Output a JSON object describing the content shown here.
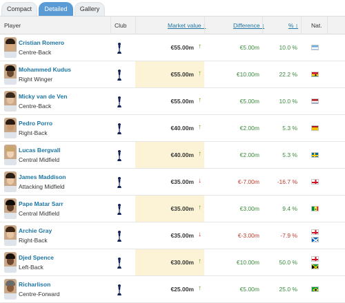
{
  "tabs": [
    "Compact",
    "Detailed",
    "Gallery"
  ],
  "columns": {
    "player": "Player",
    "club": "Club",
    "market_value": "Market value ↕",
    "difference": "Difference ↕",
    "percent": "% ↕",
    "nationality": "Nat."
  },
  "club_icon": "tottenham-crest-icon",
  "players": [
    {
      "name": "Cristian Romero",
      "position": "Centre-Back",
      "market_value": "€55.00m",
      "trend": "up",
      "highlight": false,
      "difference": "€5.00m",
      "percent": "10.0 %",
      "flags": [
        "argentina"
      ]
    },
    {
      "name": "Mohammed Kudus",
      "position": "Right Winger",
      "market_value": "€55.00m",
      "trend": "up",
      "highlight": true,
      "difference": "€10.00m",
      "percent": "22.2 %",
      "flags": [
        "ghana"
      ]
    },
    {
      "name": "Micky van de Ven",
      "position": "Centre-Back",
      "market_value": "€55.00m",
      "trend": "up",
      "highlight": false,
      "difference": "€5.00m",
      "percent": "10.0 %",
      "flags": [
        "netherlands"
      ]
    },
    {
      "name": "Pedro Porro",
      "position": "Right-Back",
      "market_value": "€40.00m",
      "trend": "up",
      "highlight": false,
      "difference": "€2.00m",
      "percent": "5.3 %",
      "flags": [
        "spain"
      ]
    },
    {
      "name": "Lucas Bergvall",
      "position": "Central Midfield",
      "market_value": "€40.00m",
      "trend": "up",
      "highlight": true,
      "difference": "€2.00m",
      "percent": "5.3 %",
      "flags": [
        "sweden"
      ]
    },
    {
      "name": "James Maddison",
      "position": "Attacking Midfield",
      "market_value": "€35.00m",
      "trend": "down",
      "highlight": false,
      "difference": "€-7.00m",
      "percent": "-16.7 %",
      "flags": [
        "england"
      ]
    },
    {
      "name": "Pape Matar Sarr",
      "position": "Central Midfield",
      "market_value": "€35.00m",
      "trend": "up",
      "highlight": true,
      "difference": "€3.00m",
      "percent": "9.4 %",
      "flags": [
        "senegal"
      ]
    },
    {
      "name": "Archie Gray",
      "position": "Right-Back",
      "market_value": "€35.00m",
      "trend": "down",
      "highlight": false,
      "difference": "€-3.00m",
      "percent": "-7.9 %",
      "flags": [
        "england",
        "scotland"
      ]
    },
    {
      "name": "Djed Spence",
      "position": "Left-Back",
      "market_value": "€30.00m",
      "trend": "up",
      "highlight": true,
      "difference": "€10.00m",
      "percent": "50.0 %",
      "flags": [
        "england",
        "jamaica"
      ]
    },
    {
      "name": "Richarlison",
      "position": "Centre-Forward",
      "market_value": "€25.00m",
      "trend": "up",
      "highlight": false,
      "difference": "€5.00m",
      "percent": "25.0 %",
      "flags": [
        "brazil"
      ]
    }
  ],
  "colors": {
    "link": "#1d75a3",
    "highlight": "#fcf3d6",
    "up": "#6a9a2d",
    "down": "#c0392b",
    "tab_active": "#5a9bd5"
  }
}
